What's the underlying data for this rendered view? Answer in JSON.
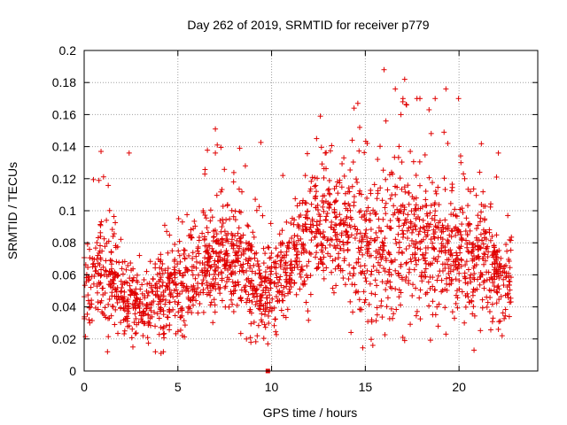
{
  "chart_data": {
    "type": "scatter",
    "title": "Day 262 of 2019, SRMTID for receiver p779",
    "xlabel": "GPS time / hours",
    "ylabel": "SRMTID / TECUs",
    "xlim": [
      0,
      24.2
    ],
    "ylim": [
      0,
      0.2
    ],
    "x_ticks": [
      "0",
      "5",
      "10",
      "15",
      "20"
    ],
    "y_ticks": [
      "0",
      "0.02",
      "0.04",
      "0.06",
      "0.08",
      "0.1",
      "0.12",
      "0.14",
      "0.16",
      "0.18",
      "0.2"
    ],
    "grid": true,
    "marker": "+",
    "series_color": "#e00000",
    "square_marker_points": [
      {
        "x": 9.8,
        "y": 0.0
      }
    ],
    "density_profile": [
      {
        "t": 0.0,
        "mean": 0.055,
        "spread": 0.018
      },
      {
        "t": 1.0,
        "mean": 0.065,
        "spread": 0.025
      },
      {
        "t": 2.0,
        "mean": 0.05,
        "spread": 0.018
      },
      {
        "t": 3.0,
        "mean": 0.04,
        "spread": 0.013
      },
      {
        "t": 4.0,
        "mean": 0.045,
        "spread": 0.018
      },
      {
        "t": 5.0,
        "mean": 0.055,
        "spread": 0.02
      },
      {
        "t": 6.0,
        "mean": 0.062,
        "spread": 0.02
      },
      {
        "t": 7.0,
        "mean": 0.072,
        "spread": 0.02
      },
      {
        "t": 8.0,
        "mean": 0.07,
        "spread": 0.022
      },
      {
        "t": 9.0,
        "mean": 0.055,
        "spread": 0.022
      },
      {
        "t": 10.0,
        "mean": 0.05,
        "spread": 0.018
      },
      {
        "t": 11.0,
        "mean": 0.065,
        "spread": 0.02
      },
      {
        "t": 12.0,
        "mean": 0.085,
        "spread": 0.025
      },
      {
        "t": 13.0,
        "mean": 0.09,
        "spread": 0.025
      },
      {
        "t": 14.0,
        "mean": 0.09,
        "spread": 0.03
      },
      {
        "t": 15.0,
        "mean": 0.08,
        "spread": 0.03
      },
      {
        "t": 16.0,
        "mean": 0.075,
        "spread": 0.03
      },
      {
        "t": 17.0,
        "mean": 0.085,
        "spread": 0.035
      },
      {
        "t": 18.0,
        "mean": 0.075,
        "spread": 0.03
      },
      {
        "t": 19.0,
        "mean": 0.08,
        "spread": 0.03
      },
      {
        "t": 20.0,
        "mean": 0.075,
        "spread": 0.025
      },
      {
        "t": 21.0,
        "mean": 0.07,
        "spread": 0.025
      },
      {
        "t": 22.0,
        "mean": 0.06,
        "spread": 0.02
      },
      {
        "t": 22.8,
        "mean": 0.055,
        "spread": 0.018
      }
    ],
    "points_per_hour": 95,
    "notable_points": [
      {
        "x": 0.9,
        "y": 0.137
      },
      {
        "x": 2.4,
        "y": 0.136
      },
      {
        "x": 7.0,
        "y": 0.151
      },
      {
        "x": 7.1,
        "y": 0.141
      },
      {
        "x": 7.0,
        "y": 0.136
      },
      {
        "x": 8.6,
        "y": 0.128
      },
      {
        "x": 8.3,
        "y": 0.139
      },
      {
        "x": 10.6,
        "y": 0.122
      },
      {
        "x": 11.8,
        "y": 0.122
      },
      {
        "x": 12.4,
        "y": 0.145
      },
      {
        "x": 12.6,
        "y": 0.159
      },
      {
        "x": 14.4,
        "y": 0.164
      },
      {
        "x": 14.6,
        "y": 0.167
      },
      {
        "x": 14.7,
        "y": 0.152
      },
      {
        "x": 14.3,
        "y": 0.144
      },
      {
        "x": 15.1,
        "y": 0.142
      },
      {
        "x": 16.0,
        "y": 0.188
      },
      {
        "x": 16.6,
        "y": 0.176
      },
      {
        "x": 17.1,
        "y": 0.182
      },
      {
        "x": 17.0,
        "y": 0.168
      },
      {
        "x": 17.2,
        "y": 0.166
      },
      {
        "x": 16.9,
        "y": 0.16
      },
      {
        "x": 16.1,
        "y": 0.156
      },
      {
        "x": 17.4,
        "y": 0.137
      },
      {
        "x": 18.4,
        "y": 0.163
      },
      {
        "x": 19.3,
        "y": 0.176
      },
      {
        "x": 19.2,
        "y": 0.149
      },
      {
        "x": 19.4,
        "y": 0.142
      },
      {
        "x": 20.1,
        "y": 0.13
      },
      {
        "x": 20.3,
        "y": 0.12
      },
      {
        "x": 21.1,
        "y": 0.124
      },
      {
        "x": 22.1,
        "y": 0.136
      },
      {
        "x": 22.0,
        "y": 0.121
      },
      {
        "x": 15.4,
        "y": 0.016
      },
      {
        "x": 17.1,
        "y": 0.019
      },
      {
        "x": 17.0,
        "y": 0.021
      },
      {
        "x": 19.3,
        "y": 0.023
      },
      {
        "x": 20.8,
        "y": 0.013
      },
      {
        "x": 22.3,
        "y": 0.022
      },
      {
        "x": 22.1,
        "y": 0.026
      },
      {
        "x": 3.8,
        "y": 0.012
      },
      {
        "x": 4.1,
        "y": 0.011
      },
      {
        "x": 2.6,
        "y": 0.015
      },
      {
        "x": 0.3,
        "y": 0.03
      },
      {
        "x": 22.6,
        "y": 0.097
      }
    ],
    "seed": 262
  }
}
